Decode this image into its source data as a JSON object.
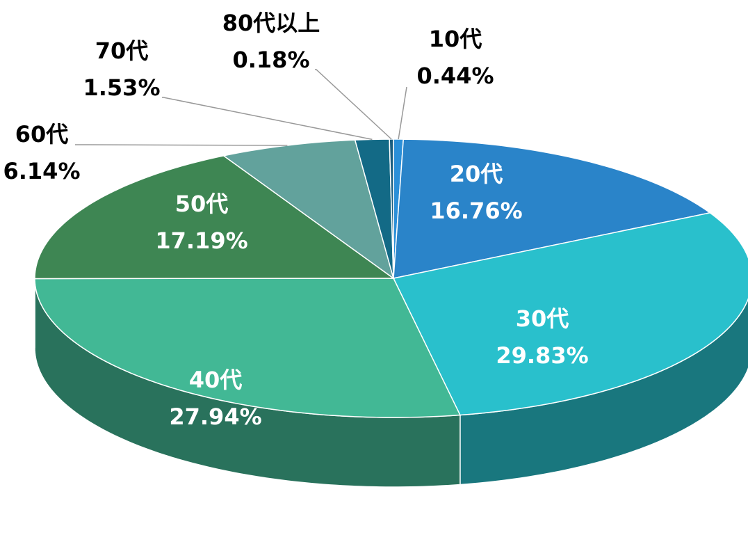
{
  "chart_data": {
    "type": "pie",
    "categories": [
      "10代",
      "20代",
      "30代",
      "40代",
      "50代",
      "60代",
      "70代",
      "80代以上"
    ],
    "values": [
      0.44,
      16.76,
      29.83,
      27.94,
      17.19,
      6.14,
      1.53,
      0.18
    ],
    "value_labels": [
      "0.44%",
      "16.76%",
      "29.83%",
      "27.94%",
      "17.19%",
      "6.14%",
      "1.53%",
      "0.18%"
    ],
    "colors": [
      "#2b8fd8",
      "#2a84c9",
      "#29c0cc",
      "#42b895",
      "#3e8653",
      "#62a29c",
      "#136a86",
      "#1b5e80"
    ]
  }
}
